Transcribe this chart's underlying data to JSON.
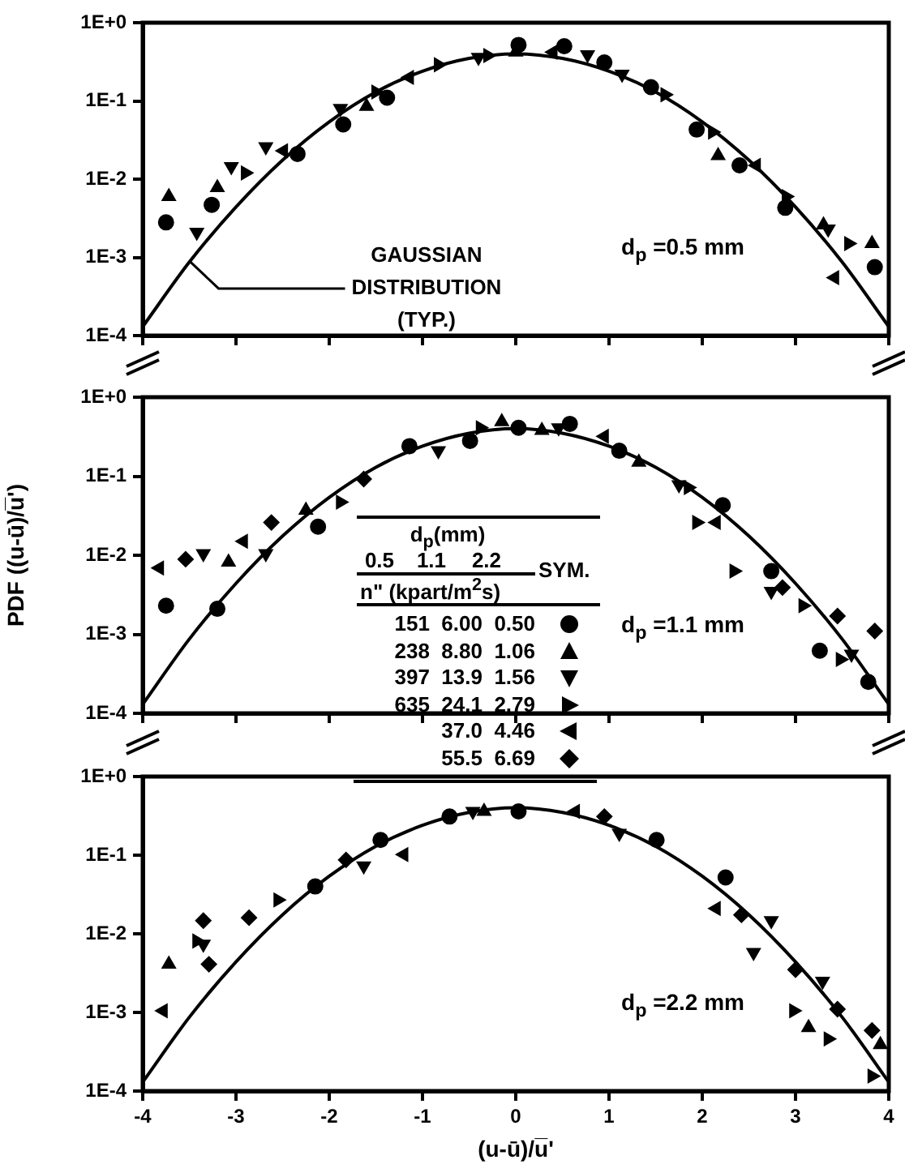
{
  "chart_data": [
    {
      "type": "scatter",
      "xlim": [
        -4,
        4
      ],
      "xticks": [
        -4,
        -3,
        -2,
        -1,
        0,
        1,
        2,
        3,
        4
      ],
      "ylim": [
        0.0001,
        1
      ],
      "log": "y",
      "yticks": [
        {
          "value": 1,
          "label": "1E+0"
        },
        {
          "value": 0.1,
          "label": "1E-1"
        },
        {
          "value": 0.01,
          "label": "1E-2"
        },
        {
          "value": 0.001,
          "label": "1E-3"
        },
        {
          "value": 0.0001,
          "label": "1E-4"
        }
      ],
      "tick_labels": "y",
      "grid": false,
      "legend": false,
      "annotations": [
        "d$_{p}$ =0.5 mm",
        {
          "text": "GAUSSIAN\nDISTRIBUTION\n(TYP.)",
          "x": -3.5,
          "y": 0.0009
        }
      ],
      "series": [
        {
          "type": "line",
          "marker": "none",
          "line_style": "solid",
          "color": "#000000",
          "x": [
            -4,
            -3.5,
            -3,
            -2.5,
            -2,
            -1.5,
            -1,
            -0.5,
            0,
            0.5,
            1,
            1.5,
            2,
            2.5,
            3,
            3.5,
            4
          ],
          "values": [
            0.00013,
            0.00087,
            0.0044,
            0.0175,
            0.054,
            0.13,
            0.24,
            0.35,
            0.4,
            0.35,
            0.24,
            0.13,
            0.054,
            0.0175,
            0.0044,
            0.00087,
            0.00013
          ]
        },
        {
          "marker": "circle",
          "color": "#000000",
          "x": [
            -3.75,
            -3.26,
            -2.34,
            -1.85,
            -1.38,
            0.03,
            0.52,
            0.95,
            1.45,
            1.94,
            2.4,
            2.89,
            3.85
          ],
          "values": [
            0.0028,
            0.0047,
            0.021,
            0.05,
            0.11,
            0.52,
            0.5,
            0.31,
            0.15,
            0.043,
            0.015,
            0.0043,
            0.00075
          ]
        },
        {
          "marker": "triangle",
          "color": "#000000",
          "x": [
            -3.72,
            -3.2,
            -1.6,
            0.0,
            2.17,
            3.3,
            3.82
          ],
          "values": [
            0.006,
            0.0078,
            0.085,
            0.42,
            0.02,
            0.0026,
            0.0015
          ]
        },
        {
          "marker": "triangle",
          "color": "#000000",
          "x": [
            -3.42,
            -3.05,
            -2.68,
            -1.88,
            -0.4,
            0.77,
            1.14,
            3.35
          ],
          "values": [
            0.0021,
            0.0145,
            0.026,
            0.08,
            0.36,
            0.39,
            0.22,
            0.0023
          ]
        },
        {
          "marker": "triangle",
          "color": "#000000",
          "x": [
            -2.9,
            -1.5,
            -0.83,
            -0.3,
            1.6,
            2.11,
            2.9,
            3.57
          ],
          "values": [
            0.012,
            0.13,
            0.29,
            0.38,
            0.12,
            0.04,
            0.006,
            0.0015
          ]
        },
        {
          "marker": "triangle",
          "color": "#000000",
          "x": [
            -2.49,
            -1.14,
            0.4,
            2.58,
            3.42
          ],
          "values": [
            0.023,
            0.2,
            0.42,
            0.015,
            0.00055
          ]
        }
      ]
    },
    {
      "type": "scatter",
      "xlim": [
        -4,
        4
      ],
      "xticks": [
        -4,
        -3,
        -2,
        -1,
        0,
        1,
        2,
        3,
        4
      ],
      "ylim": [
        0.0001,
        1
      ],
      "log": "y",
      "yticks": [
        {
          "value": 1,
          "label": "1E+0"
        },
        {
          "value": 0.1,
          "label": "1E-1"
        },
        {
          "value": 0.01,
          "label": "1E-2"
        },
        {
          "value": 0.001,
          "label": "1E-3"
        },
        {
          "value": 0.0001,
          "label": "1E-4"
        }
      ],
      "tick_labels": "y",
      "grid": false,
      "legend": false,
      "ylabel": "PDF ((u-ū)/u̅')",
      "annotations": [
        "d$_{p}$ =1.1 mm",
        "d$_{p}$(mm)",
        "0.5",
        "1.1",
        "2.2",
        "SYM.",
        "n\" (kpart/m$^{2}$s)",
        "151  6.00  0.50",
        "238  8.80  1.06",
        "397  13.9  1.56",
        "635  24.1  2.79",
        "37.0  4.46",
        "55.5  6.69"
      ],
      "series": [
        {
          "type": "line",
          "marker": "none",
          "line_style": "solid",
          "color": "#000000",
          "x": [
            -4,
            -3.5,
            -3,
            -2.5,
            -2,
            -1.5,
            -1,
            -0.5,
            0,
            0.5,
            1,
            1.5,
            2,
            2.5,
            3,
            3.5,
            4
          ],
          "values": [
            0.00013,
            0.00087,
            0.0044,
            0.0175,
            0.054,
            0.13,
            0.24,
            0.35,
            0.4,
            0.35,
            0.24,
            0.13,
            0.054,
            0.0175,
            0.0044,
            0.00087,
            0.00013
          ]
        },
        {
          "marker": "circle",
          "color": "#000000",
          "x": [
            -3.75,
            -3.2,
            -2.12,
            -1.14,
            -0.49,
            0.03,
            0.58,
            1.11,
            2.22,
            2.74,
            3.26,
            3.78
          ],
          "values": [
            0.0023,
            0.0021,
            0.023,
            0.24,
            0.28,
            0.41,
            0.46,
            0.21,
            0.043,
            0.0063,
            0.00062,
            0.00025
          ]
        },
        {
          "marker": "triangle",
          "color": "#000000",
          "x": [
            -3.08,
            -2.25,
            -0.15,
            0.28,
            1.32
          ],
          "values": [
            0.0082,
            0.037,
            0.49,
            0.38,
            0.15
          ]
        },
        {
          "marker": "triangle",
          "color": "#000000",
          "x": [
            -3.35,
            -2.68,
            -0.83,
            0.46,
            1.75,
            2.74,
            3.6
          ],
          "values": [
            0.0105,
            0.0105,
            0.21,
            0.41,
            0.078,
            0.0035,
            0.00056
          ]
        },
        {
          "marker": "triangle",
          "color": "#000000",
          "x": [
            -1.88,
            -0.38,
            1.85,
            1.94,
            2.34,
            3.08,
            3.48
          ],
          "values": [
            0.047,
            0.41,
            0.072,
            0.026,
            0.0063,
            0.0023,
            0.00048
          ]
        },
        {
          "marker": "triangle",
          "color": "#000000",
          "x": [
            -3.82,
            -2.92,
            0.95,
            2.15
          ],
          "values": [
            0.0069,
            0.015,
            0.32,
            0.026
          ]
        },
        {
          "marker": "diamond",
          "color": "#000000",
          "x": [
            -3.54,
            -2.62,
            -1.63,
            2.86,
            3.45,
            3.85
          ],
          "values": [
            0.0089,
            0.026,
            0.092,
            0.0039,
            0.0017,
            0.0011
          ]
        }
      ]
    },
    {
      "type": "scatter",
      "xlim": [
        -4,
        4
      ],
      "xticks": [
        -4,
        -3,
        -2,
        -1,
        0,
        1,
        2,
        3,
        4
      ],
      "ylim": [
        0.0001,
        1
      ],
      "log": "y",
      "yticks": [
        {
          "value": 1,
          "label": "1E+0"
        },
        {
          "value": 0.1,
          "label": "1E-1"
        },
        {
          "value": 0.01,
          "label": "1E-2"
        },
        {
          "value": 0.001,
          "label": "1E-3"
        },
        {
          "value": 0.0001,
          "label": "1E-4"
        }
      ],
      "grid": false,
      "legend": false,
      "xlabel": "(u-ū)/u̅'",
      "annotations": [
        "d$_{p}$ =2.2 mm"
      ],
      "series": [
        {
          "type": "line",
          "marker": "none",
          "line_style": "solid",
          "color": "#000000",
          "x": [
            -4,
            -3.5,
            -3,
            -2.5,
            -2,
            -1.5,
            -1,
            -0.5,
            0,
            0.5,
            1,
            1.5,
            2,
            2.5,
            3,
            3.5,
            4
          ],
          "values": [
            0.00013,
            0.00087,
            0.0044,
            0.0175,
            0.054,
            0.13,
            0.24,
            0.35,
            0.4,
            0.35,
            0.24,
            0.13,
            0.054,
            0.0175,
            0.0044,
            0.00087,
            0.00013
          ]
        },
        {
          "marker": "circle",
          "color": "#000000",
          "x": [
            -2.15,
            -1.45,
            -0.71,
            0.03,
            1.51,
            2.25
          ],
          "values": [
            0.04,
            0.156,
            0.31,
            0.36,
            0.156,
            0.052
          ]
        },
        {
          "marker": "triangle",
          "color": "#000000",
          "x": [
            -3.72,
            -0.34,
            3.14,
            3.91
          ],
          "values": [
            0.0041,
            0.36,
            0.00064,
            0.00039
          ]
        },
        {
          "marker": "triangle",
          "color": "#000000",
          "x": [
            -3.35,
            -1.63,
            -0.46,
            1.11,
            2.55,
            2.74,
            3.29
          ],
          "values": [
            0.0074,
            0.073,
            0.36,
            0.19,
            0.0058,
            0.0147,
            0.0025
          ]
        },
        {
          "marker": "triangle",
          "color": "#000000",
          "x": [
            -3.42,
            -2.55,
            2.98,
            3.35,
            3.82
          ],
          "values": [
            0.0081,
            0.027,
            0.00105,
            0.00046,
            0.000155
          ]
        },
        {
          "marker": "triangle",
          "color": "#000000",
          "x": [
            -3.78,
            -1.2,
            0.64,
            2.15
          ],
          "values": [
            0.00105,
            0.102,
            0.36,
            0.021
          ]
        },
        {
          "marker": "diamond",
          "color": "#000000",
          "x": [
            -3.35,
            -3.29,
            -2.86,
            -1.82,
            0.95,
            2.42,
            3.0,
            3.45,
            3.82
          ],
          "values": [
            0.0147,
            0.0041,
            0.016,
            0.087,
            0.31,
            0.0174,
            0.0035,
            0.0011,
            0.00059
          ]
        }
      ]
    }
  ]
}
